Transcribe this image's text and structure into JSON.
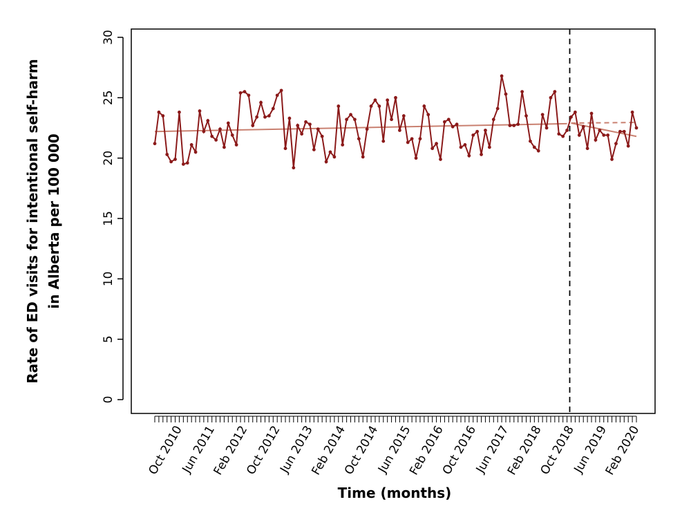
{
  "chart_data": {
    "type": "line",
    "title": "",
    "xlabel": "Time (months)",
    "ylabel_lines": [
      "Rate of ED visits for intentional self-harm",
      "in Alberta per 100 000"
    ],
    "ylim": [
      0,
      30
    ],
    "yticks": [
      0,
      5,
      10,
      15,
      20,
      25,
      30
    ],
    "x_start": "Apr 2010",
    "x_end": "Feb 2020",
    "xtick_labels": [
      "Oct 2010",
      "Jun 2011",
      "Feb 2012",
      "Oct 2012",
      "Jun 2013",
      "Feb 2014",
      "Oct 2014",
      "Jun 2015",
      "Feb 2016",
      "Oct 2016",
      "Jun 2017",
      "Feb 2018",
      "Oct 2018",
      "Jun 2019",
      "Feb 2020"
    ],
    "intervention": "Oct 2018",
    "grid": false,
    "values": [
      21.2,
      23.8,
      23.5,
      20.3,
      19.7,
      19.9,
      23.8,
      19.5,
      19.6,
      21.1,
      20.5,
      23.9,
      22.2,
      23.1,
      21.8,
      21.5,
      22.4,
      20.9,
      22.9,
      21.9,
      21.1,
      25.4,
      25.5,
      25.2,
      22.7,
      23.4,
      24.6,
      23.4,
      23.5,
      24.1,
      25.2,
      25.6,
      20.8,
      23.3,
      19.2,
      22.7,
      22.0,
      23.0,
      22.8,
      20.7,
      22.4,
      21.8,
      19.7,
      20.5,
      20.1,
      24.3,
      21.1,
      23.2,
      23.6,
      23.2,
      21.6,
      20.1,
      22.4,
      24.3,
      24.8,
      24.3,
      21.4,
      24.8,
      23.2,
      25.0,
      22.3,
      23.5,
      21.3,
      21.6,
      20.0,
      21.6,
      24.3,
      23.6,
      20.8,
      21.2,
      19.9,
      23.0,
      23.2,
      22.6,
      22.8,
      20.9,
      21.1,
      20.2,
      21.9,
      22.2,
      20.3,
      22.3,
      20.9,
      23.2,
      24.1,
      26.8,
      25.3,
      22.7,
      22.7,
      22.8,
      25.5,
      23.5,
      21.4,
      20.9,
      20.6,
      23.6,
      22.5,
      25.0,
      25.5,
      22.0,
      21.8,
      22.3,
      23.4,
      23.8,
      21.9,
      22.6,
      20.8,
      23.7,
      21.5,
      22.3,
      21.9,
      21.9,
      19.9,
      21.2,
      22.2,
      22.2,
      21.0,
      23.8,
      22.5
    ],
    "trend_pre": [
      22.2,
      22.85
    ],
    "trend_post": [
      22.9,
      21.8
    ],
    "counterfactual": [
      22.9,
      22.95
    ],
    "colors": {
      "series": "#8b1a1a",
      "trend": "#c98070",
      "intervention_line": "#000000"
    }
  }
}
